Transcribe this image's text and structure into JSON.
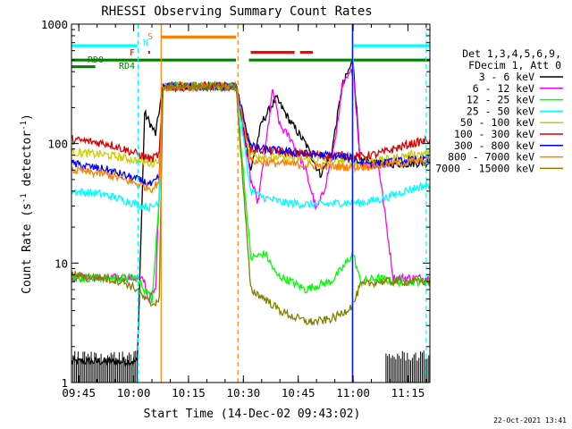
{
  "chart_data": {
    "type": "line",
    "title": "RHESSI Observing Summary Count Rates",
    "xlabel": "Start Time (14-Dec-02 09:43:02)",
    "ylabel_main": "Count Rate (s",
    "ylabel_sup": "-1",
    "ylabel_tail": " detector",
    "ylabel_end": ")",
    "yscale": "log",
    "ylim": [
      1,
      1000
    ],
    "xlim_minutes": [
      0,
      98
    ],
    "x_ticks": [
      {
        "label": "09:45",
        "minute": 2
      },
      {
        "label": "10:00",
        "minute": 17
      },
      {
        "label": "10:15",
        "minute": 32
      },
      {
        "label": "10:30",
        "minute": 47
      },
      {
        "label": "10:45",
        "minute": 62
      },
      {
        "label": "11:00",
        "minute": 77
      },
      {
        "label": "11:15",
        "minute": 92
      }
    ],
    "y_ticks": [
      {
        "label": "1",
        "value": 1
      },
      {
        "label": "10",
        "value": 10
      },
      {
        "label": "100",
        "value": 100
      },
      {
        "label": "1000",
        "value": 1000
      }
    ],
    "legend_header": [
      "Det 1,3,4,5,6,9,",
      "FDecim 1, Att 0"
    ],
    "series": [
      {
        "name": "3 - 6 keV",
        "color": "#000000",
        "points": [
          [
            0,
            1.5
          ],
          [
            18,
            1.5
          ],
          [
            20,
            180
          ],
          [
            23,
            120
          ],
          [
            25,
            300
          ],
          [
            45,
            300
          ],
          [
            49,
            60
          ],
          [
            52,
            150
          ],
          [
            56,
            240
          ],
          [
            60,
            150
          ],
          [
            64,
            100
          ],
          [
            68,
            55
          ],
          [
            71,
            80
          ],
          [
            74,
            300
          ],
          [
            77,
            500
          ],
          [
            79,
            70
          ],
          [
            85,
            68
          ],
          [
            92,
            68
          ],
          [
            98,
            70
          ]
        ]
      },
      {
        "name": "6 - 12 keV",
        "color": "#ff00ff",
        "points": [
          [
            0,
            7.5
          ],
          [
            18,
            7.5
          ],
          [
            20,
            7
          ],
          [
            21,
            5
          ],
          [
            23,
            6
          ],
          [
            25,
            300
          ],
          [
            45,
            300
          ],
          [
            49,
            50
          ],
          [
            51,
            32
          ],
          [
            53,
            90
          ],
          [
            55,
            280
          ],
          [
            57,
            140
          ],
          [
            60,
            110
          ],
          [
            64,
            60
          ],
          [
            67,
            28
          ],
          [
            69,
            40
          ],
          [
            72,
            100
          ],
          [
            74,
            300
          ],
          [
            77,
            420
          ],
          [
            79,
            68
          ],
          [
            84,
            65
          ],
          [
            88,
            7.5
          ],
          [
            92,
            7.5
          ],
          [
            98,
            7.5
          ]
        ]
      },
      {
        "name": "12 - 25 keV",
        "color": "#00ff00",
        "points": [
          [
            0,
            7.5
          ],
          [
            18,
            7.5
          ],
          [
            20,
            6
          ],
          [
            22,
            5
          ],
          [
            24,
            35
          ],
          [
            25,
            300
          ],
          [
            45,
            300
          ],
          [
            49,
            11
          ],
          [
            53,
            12
          ],
          [
            56,
            8
          ],
          [
            60,
            7
          ],
          [
            64,
            6
          ],
          [
            67,
            6.5
          ],
          [
            71,
            7
          ],
          [
            74,
            9
          ],
          [
            77,
            12
          ],
          [
            79,
            7
          ],
          [
            84,
            7.5
          ],
          [
            88,
            7
          ],
          [
            92,
            7
          ],
          [
            98,
            7
          ]
        ]
      },
      {
        "name": "25 - 50 keV",
        "color": "#00ffff",
        "points": [
          [
            0,
            40
          ],
          [
            8,
            38
          ],
          [
            14,
            34
          ],
          [
            18,
            31
          ],
          [
            22,
            29
          ],
          [
            24,
            34
          ],
          [
            25,
            300
          ],
          [
            45,
            300
          ],
          [
            49,
            40
          ],
          [
            53,
            35
          ],
          [
            58,
            32
          ],
          [
            64,
            31
          ],
          [
            69,
            31
          ],
          [
            74,
            32
          ],
          [
            79,
            32
          ],
          [
            84,
            34
          ],
          [
            88,
            37
          ],
          [
            92,
            41
          ],
          [
            96,
            44
          ],
          [
            98,
            45
          ]
        ]
      },
      {
        "name": "50 - 100 keV",
        "color": "#cccc00",
        "points": [
          [
            0,
            85
          ],
          [
            10,
            80
          ],
          [
            18,
            72
          ],
          [
            22,
            68
          ],
          [
            24,
            75
          ],
          [
            25,
            300
          ],
          [
            45,
            300
          ],
          [
            49,
            82
          ],
          [
            53,
            78
          ],
          [
            58,
            76
          ],
          [
            64,
            74
          ],
          [
            69,
            73
          ],
          [
            74,
            72
          ],
          [
            79,
            70
          ],
          [
            84,
            72
          ],
          [
            88,
            75
          ],
          [
            92,
            80
          ],
          [
            98,
            84
          ]
        ]
      },
      {
        "name": "100 - 300 keV",
        "color": "#dd0000",
        "points": [
          [
            0,
            108
          ],
          [
            10,
            100
          ],
          [
            18,
            82
          ],
          [
            22,
            74
          ],
          [
            24,
            82
          ],
          [
            25,
            300
          ],
          [
            45,
            300
          ],
          [
            49,
            90
          ],
          [
            53,
            88
          ],
          [
            58,
            85
          ],
          [
            64,
            82
          ],
          [
            69,
            80
          ],
          [
            74,
            80
          ],
          [
            79,
            78
          ],
          [
            84,
            82
          ],
          [
            88,
            90
          ],
          [
            92,
            98
          ],
          [
            98,
            108
          ]
        ]
      },
      {
        "name": "300 - 800 keV",
        "color": "#0000ff",
        "points": [
          [
            0,
            68
          ],
          [
            10,
            60
          ],
          [
            18,
            50
          ],
          [
            22,
            45
          ],
          [
            24,
            52
          ],
          [
            25,
            300
          ],
          [
            45,
            300
          ],
          [
            49,
            95
          ],
          [
            52,
            90
          ],
          [
            56,
            88
          ],
          [
            60,
            85
          ],
          [
            64,
            82
          ],
          [
            69,
            80
          ],
          [
            74,
            78
          ],
          [
            77,
            75
          ],
          [
            79,
            70
          ],
          [
            84,
            68
          ],
          [
            88,
            70
          ],
          [
            92,
            72
          ],
          [
            98,
            74
          ]
        ]
      },
      {
        "name": "800 - 7000 keV",
        "color": "#ff8000",
        "points": [
          [
            0,
            60
          ],
          [
            10,
            55
          ],
          [
            18,
            46
          ],
          [
            22,
            42
          ],
          [
            24,
            48
          ],
          [
            25,
            300
          ],
          [
            45,
            300
          ],
          [
            49,
            72
          ],
          [
            53,
            70
          ],
          [
            58,
            68
          ],
          [
            64,
            66
          ],
          [
            69,
            65
          ],
          [
            74,
            64
          ],
          [
            79,
            64
          ],
          [
            84,
            66
          ],
          [
            88,
            68
          ],
          [
            92,
            70
          ],
          [
            98,
            72
          ]
        ]
      },
      {
        "name": "7000 - 15000 keV",
        "color": "#808000",
        "points": [
          [
            0,
            8
          ],
          [
            8,
            7.5
          ],
          [
            14,
            7
          ],
          [
            18,
            6
          ],
          [
            20,
            5
          ],
          [
            22,
            4.5
          ],
          [
            24,
            5
          ],
          [
            25,
            300
          ],
          [
            45,
            300
          ],
          [
            49,
            6
          ],
          [
            53,
            5
          ],
          [
            57,
            4
          ],
          [
            61,
            3.5
          ],
          [
            65,
            3.2
          ],
          [
            69,
            3.3
          ],
          [
            72,
            3.5
          ],
          [
            75,
            4
          ],
          [
            77,
            4.5
          ],
          [
            79,
            6.5
          ],
          [
            84,
            7
          ],
          [
            88,
            7
          ],
          [
            92,
            7
          ],
          [
            98,
            7
          ]
        ]
      }
    ],
    "flag_bars": [
      {
        "label": "RD0",
        "color": "#008000",
        "segments": [
          [
            -2,
            45
          ],
          [
            48.5,
            98
          ]
        ],
        "level": 500
      },
      {
        "label": "RD4",
        "color": "#008000",
        "segments": [
          [
            -2,
            6.5
          ]
        ],
        "level": 440
      },
      {
        "label": "N",
        "color": "#00ffff",
        "segments": [
          [
            -2,
            18
          ],
          [
            77,
            98
          ]
        ],
        "level": 660
      },
      {
        "label": "S",
        "color": "#ff8000",
        "segments": [
          [
            24.5,
            45
          ]
        ],
        "level": 780
      },
      {
        "label": "F",
        "color": "#ff0000",
        "segments": [
          [
            21,
            21.4
          ],
          [
            49,
            61
          ],
          [
            62.5,
            66
          ]
        ],
        "level": 580
      }
    ],
    "vertical_markers": [
      {
        "minute": 18.2,
        "color": "#00ffff",
        "style": "dashed"
      },
      {
        "minute": 24.5,
        "color": "#ff8000",
        "style": "solid"
      },
      {
        "minute": 45.5,
        "color": "#ff8000",
        "style": "dashed"
      },
      {
        "minute": 77,
        "color": "#00ffff",
        "style": "solid"
      },
      {
        "minute": 76.8,
        "color": "#0000ff",
        "style": "solid"
      },
      {
        "minute": 97,
        "color": "#00ffff",
        "style": "dashed"
      }
    ],
    "attenuator_spikes": {
      "color": "#000000",
      "ranges": [
        [
          0,
          18
        ],
        [
          86,
          98
        ]
      ]
    }
  },
  "footer_date": "22-Oct-2021 13:41"
}
